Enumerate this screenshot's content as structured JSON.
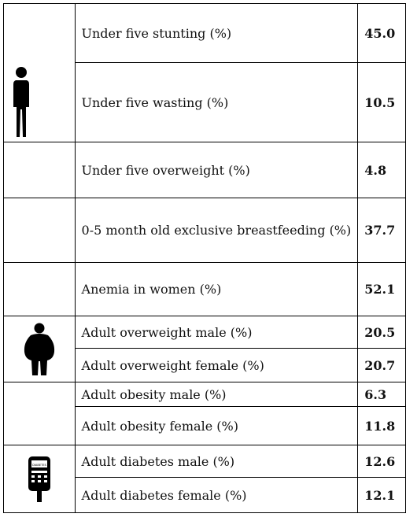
{
  "rows": [
    {
      "label": "Under five stunting (%)",
      "value": "45.0"
    },
    {
      "label": "Under five wasting (%)",
      "value": "10.5"
    },
    {
      "label": "Under five overweight (%)",
      "value": "4.8"
    },
    {
      "label": "0-5 month old exclusive breastfeeding (%)",
      "value": "37.7"
    },
    {
      "label": "Anemia in women (%)",
      "value": "52.1"
    },
    {
      "label": "Adult overweight male (%)",
      "value": "20.5"
    },
    {
      "label": "Adult overweight female (%)",
      "value": "20.7"
    },
    {
      "label": "Adult obesity male (%)",
      "value": "6.3"
    },
    {
      "label": "Adult obesity female (%)",
      "value": "11.8"
    },
    {
      "label": "Adult diabetes male (%)",
      "value": "12.6"
    },
    {
      "label": "Adult diabetes female (%)",
      "value": "12.1"
    }
  ],
  "icons": {
    "child": "person-thin-icon",
    "overweight": "person-overweight-icon",
    "diabetes": "glucose-meter-icon",
    "meter_text": "DIABETES"
  }
}
